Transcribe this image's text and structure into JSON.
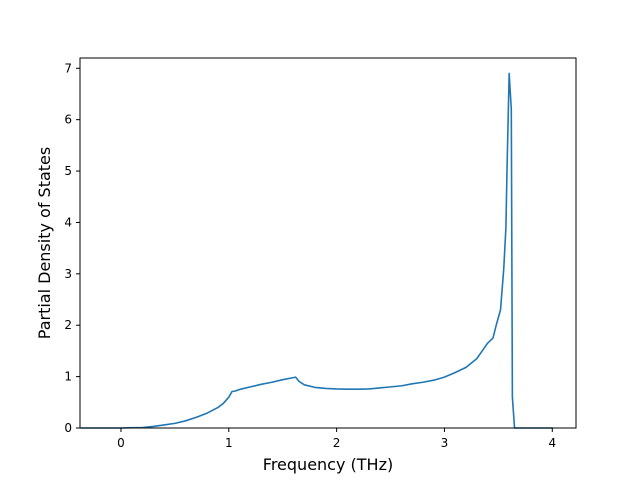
{
  "chart_data": {
    "type": "line",
    "title": "",
    "xlabel": "Frequency (THz)",
    "ylabel": "Partial Density of States",
    "xlim": [
      -0.38,
      4.22
    ],
    "ylim": [
      0,
      7.2
    ],
    "xticks": [
      0,
      1,
      2,
      3,
      4
    ],
    "xtick_labels": [
      "0",
      "1",
      "2",
      "3",
      "4"
    ],
    "yticks": [
      0,
      1,
      2,
      3,
      4,
      5,
      6,
      7
    ],
    "ytick_labels": [
      "0",
      "1",
      "2",
      "3",
      "4",
      "5",
      "6",
      "7"
    ],
    "grid": false,
    "legend": false,
    "series": [
      {
        "color": "#1f77b4",
        "x": [
          -0.37,
          0.0,
          0.2,
          0.3,
          0.4,
          0.5,
          0.6,
          0.7,
          0.8,
          0.9,
          0.95,
          1.0,
          1.03,
          1.06,
          1.1,
          1.2,
          1.3,
          1.4,
          1.5,
          1.6,
          1.62,
          1.65,
          1.7,
          1.8,
          1.9,
          2.0,
          2.1,
          2.2,
          2.3,
          2.4,
          2.5,
          2.6,
          2.7,
          2.8,
          2.9,
          3.0,
          3.1,
          3.2,
          3.3,
          3.35,
          3.4,
          3.45,
          3.48,
          3.5,
          3.52,
          3.55,
          3.57,
          3.58,
          3.6,
          3.62,
          3.63,
          3.65,
          3.7,
          4.0
        ],
        "y": [
          0.0,
          0.0,
          0.01,
          0.03,
          0.06,
          0.09,
          0.14,
          0.21,
          0.29,
          0.4,
          0.48,
          0.6,
          0.71,
          0.72,
          0.75,
          0.8,
          0.85,
          0.89,
          0.94,
          0.98,
          0.99,
          0.91,
          0.84,
          0.79,
          0.77,
          0.76,
          0.755,
          0.755,
          0.76,
          0.78,
          0.8,
          0.82,
          0.86,
          0.89,
          0.93,
          0.99,
          1.08,
          1.18,
          1.35,
          1.5,
          1.65,
          1.75,
          2.0,
          2.15,
          2.3,
          3.1,
          3.9,
          5.0,
          6.9,
          6.2,
          0.6,
          0.0,
          0.0,
          0.0
        ]
      }
    ]
  }
}
